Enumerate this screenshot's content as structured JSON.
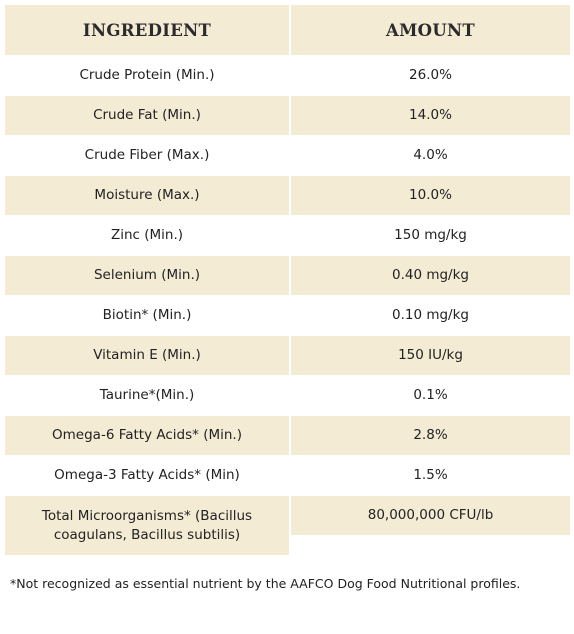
{
  "table": {
    "header": [
      "INGREDIENT",
      "AMOUNT"
    ],
    "rows": [
      [
        "Crude Protein (Min.)",
        "26.0%"
      ],
      [
        "Crude Fat (Min.)",
        "14.0%"
      ],
      [
        "Crude Fiber (Max.)",
        "4.0%"
      ],
      [
        "Moisture (Max.)",
        "10.0%"
      ],
      [
        "Zinc (Min.)",
        "150 mg/kg"
      ],
      [
        "Selenium (Min.)",
        "0.40 mg/kg"
      ],
      [
        "Biotin* (Min.)",
        "0.10 mg/kg"
      ],
      [
        "Vitamin E (Min.)",
        "150 IU/kg"
      ],
      [
        "Taurine*(Min.)",
        "0.1%"
      ],
      [
        "Omega-6 Fatty Acids* (Min.)",
        "2.8%"
      ],
      [
        "Omega-3 Fatty Acids* (Min)",
        "1.5%"
      ],
      [
        "Total Microorganisms* (Bacillus coagulans, Bacillus subtilis)",
        "80,000,000 CFU/lb"
      ]
    ]
  },
  "footnote": "*Not recognized as essential nutrient by the AAFCO Dog Food Nutritional profiles."
}
